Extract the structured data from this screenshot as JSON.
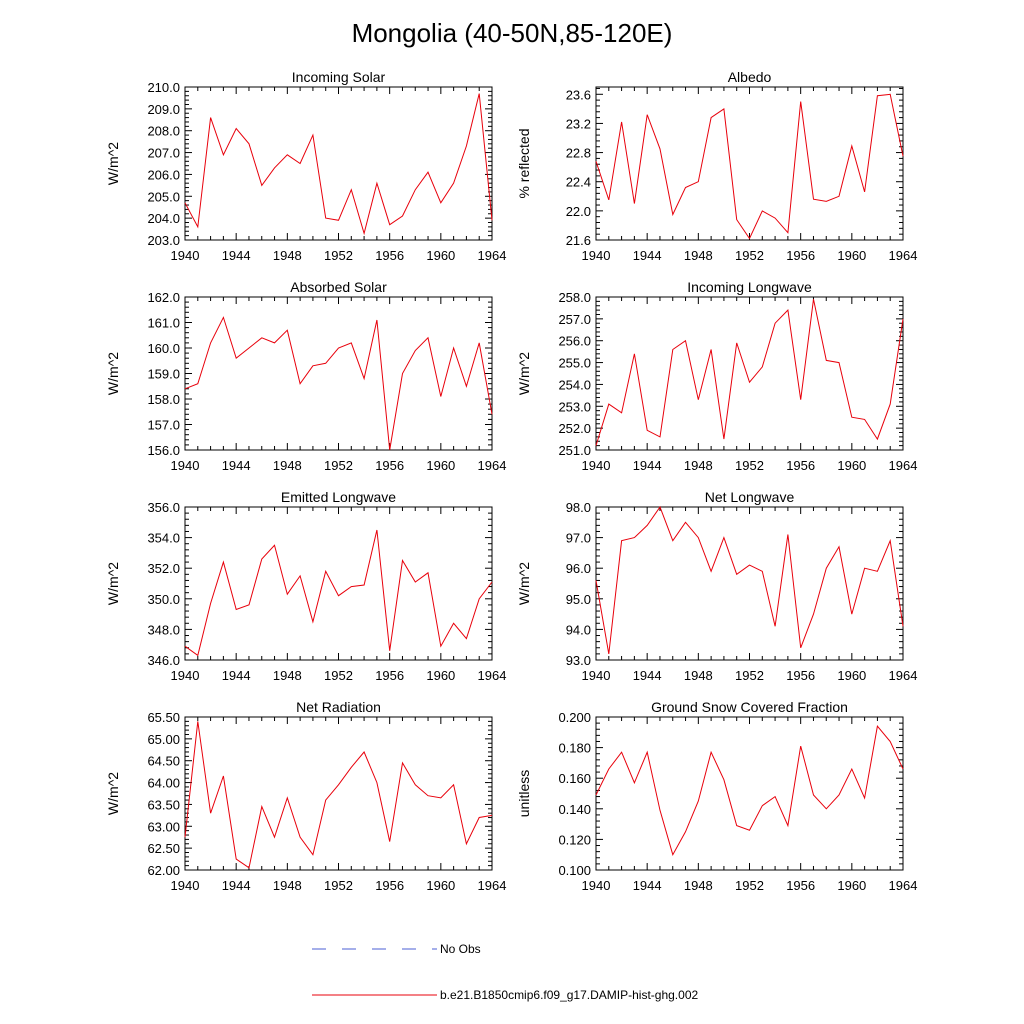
{
  "figure": {
    "title": "Mongolia (40-50N,85-120E)",
    "legend": [
      {
        "label": "No Obs",
        "color": "#4b5fd6",
        "style": "dashed"
      },
      {
        "label": "b.e21.B1850cmip6.f09_g17.DAMIP-hist-ghg.002",
        "color": "#e8000b",
        "style": "solid"
      }
    ]
  },
  "chart_data": [
    {
      "type": "line",
      "title": "Incoming Solar",
      "ylabel": "W/m^2",
      "xlim": [
        1940,
        1964
      ],
      "ylim": [
        203.0,
        210.0
      ],
      "xticks": [
        "1940",
        "1944",
        "1948",
        "1952",
        "1956",
        "1960",
        "1964"
      ],
      "yticks": [
        "203.0",
        "204.0",
        "205.0",
        "206.0",
        "207.0",
        "208.0",
        "209.0",
        "210.0"
      ],
      "x": [
        1940,
        1941,
        1942,
        1943,
        1944,
        1945,
        1946,
        1947,
        1948,
        1949,
        1950,
        1951,
        1952,
        1953,
        1954,
        1955,
        1956,
        1957,
        1958,
        1959,
        1960,
        1961,
        1962,
        1963,
        1964
      ],
      "values": [
        204.7,
        203.6,
        208.6,
        206.9,
        208.1,
        207.4,
        205.5,
        206.3,
        206.9,
        206.5,
        207.8,
        204.0,
        203.9,
        205.3,
        203.3,
        205.6,
        203.7,
        204.1,
        205.3,
        206.1,
        204.7,
        205.6,
        207.3,
        209.7,
        203.9
      ],
      "color": "#e8000b"
    },
    {
      "type": "line",
      "title": "Albedo",
      "ylabel": "% reflected",
      "xlim": [
        1940,
        1964
      ],
      "ylim": [
        21.6,
        23.7
      ],
      "xticks": [
        "1940",
        "1944",
        "1948",
        "1952",
        "1956",
        "1960",
        "1964"
      ],
      "yticks": [
        "21.6",
        "22.0",
        "22.4",
        "22.8",
        "23.2",
        "23.6"
      ],
      "x": [
        1940,
        1941,
        1942,
        1943,
        1944,
        1945,
        1946,
        1947,
        1948,
        1949,
        1950,
        1951,
        1952,
        1953,
        1954,
        1955,
        1956,
        1957,
        1958,
        1959,
        1960,
        1961,
        1962,
        1963,
        1964
      ],
      "values": [
        22.68,
        22.15,
        23.22,
        22.1,
        23.32,
        22.85,
        21.95,
        22.32,
        22.4,
        23.28,
        23.4,
        21.88,
        21.62,
        22.0,
        21.9,
        21.7,
        23.5,
        22.16,
        22.13,
        22.2,
        22.89,
        22.26,
        23.58,
        23.6,
        22.75
      ],
      "color": "#e8000b"
    },
    {
      "type": "line",
      "title": "Absorbed Solar",
      "ylabel": "W/m^2",
      "xlim": [
        1940,
        1964
      ],
      "ylim": [
        156.0,
        162.0
      ],
      "xticks": [
        "1940",
        "1944",
        "1948",
        "1952",
        "1956",
        "1960",
        "1964"
      ],
      "yticks": [
        "156.0",
        "157.0",
        "158.0",
        "159.0",
        "160.0",
        "161.0",
        "162.0"
      ],
      "x": [
        1940,
        1941,
        1942,
        1943,
        1944,
        1945,
        1946,
        1947,
        1948,
        1949,
        1950,
        1951,
        1952,
        1953,
        1954,
        1955,
        1956,
        1957,
        1958,
        1959,
        1960,
        1961,
        1962,
        1963,
        1964
      ],
      "values": [
        158.4,
        158.6,
        160.2,
        161.2,
        159.6,
        160.0,
        160.4,
        160.2,
        160.7,
        158.6,
        159.3,
        159.4,
        160.0,
        160.2,
        158.8,
        161.1,
        156.0,
        159.0,
        159.9,
        160.4,
        158.1,
        160.0,
        158.5,
        160.2,
        157.4
      ],
      "color": "#e8000b"
    },
    {
      "type": "line",
      "title": "Incoming Longwave",
      "ylabel": "W/m^2",
      "xlim": [
        1940,
        1964
      ],
      "ylim": [
        251.0,
        258.0
      ],
      "xticks": [
        "1940",
        "1944",
        "1948",
        "1952",
        "1956",
        "1960",
        "1964"
      ],
      "yticks": [
        "251.0",
        "252.0",
        "253.0",
        "254.0",
        "255.0",
        "256.0",
        "257.0",
        "258.0"
      ],
      "x": [
        1940,
        1941,
        1942,
        1943,
        1944,
        1945,
        1946,
        1947,
        1948,
        1949,
        1950,
        1951,
        1952,
        1953,
        1954,
        1955,
        1956,
        1957,
        1958,
        1959,
        1960,
        1961,
        1962,
        1963,
        1964
      ],
      "values": [
        251.2,
        253.1,
        252.7,
        255.4,
        251.9,
        251.6,
        255.6,
        256.0,
        253.3,
        255.6,
        251.5,
        255.9,
        254.1,
        254.8,
        256.8,
        257.4,
        253.3,
        257.9,
        255.1,
        255.0,
        252.5,
        252.4,
        251.5,
        253.1,
        257.0
      ],
      "color": "#e8000b"
    },
    {
      "type": "line",
      "title": "Emitted Longwave",
      "ylabel": "W/m^2",
      "xlim": [
        1940,
        1964
      ],
      "ylim": [
        346.0,
        356.0
      ],
      "xticks": [
        "1940",
        "1944",
        "1948",
        "1952",
        "1956",
        "1960",
        "1964"
      ],
      "yticks": [
        "346.0",
        "348.0",
        "350.0",
        "352.0",
        "354.0",
        "356.0"
      ],
      "x": [
        1940,
        1941,
        1942,
        1943,
        1944,
        1945,
        1946,
        1947,
        1948,
        1949,
        1950,
        1951,
        1952,
        1953,
        1954,
        1955,
        1956,
        1957,
        1958,
        1959,
        1960,
        1961,
        1962,
        1963,
        1964
      ],
      "values": [
        346.9,
        346.3,
        349.7,
        352.4,
        349.3,
        349.6,
        352.6,
        353.5,
        350.3,
        351.5,
        348.5,
        351.8,
        350.2,
        350.8,
        350.9,
        354.5,
        346.6,
        352.5,
        351.1,
        351.7,
        346.9,
        348.4,
        347.4,
        350.0,
        351.1
      ],
      "color": "#e8000b"
    },
    {
      "type": "line",
      "title": "Net Longwave",
      "ylabel": "W/m^2",
      "xlim": [
        1940,
        1964
      ],
      "ylim": [
        93.0,
        98.0
      ],
      "xticks": [
        "1940",
        "1944",
        "1948",
        "1952",
        "1956",
        "1960",
        "1964"
      ],
      "yticks": [
        "93.0",
        "94.0",
        "95.0",
        "96.0",
        "97.0",
        "98.0"
      ],
      "x": [
        1940,
        1941,
        1942,
        1943,
        1944,
        1945,
        1946,
        1947,
        1948,
        1949,
        1950,
        1951,
        1952,
        1953,
        1954,
        1955,
        1956,
        1957,
        1958,
        1959,
        1960,
        1961,
        1962,
        1963,
        1964
      ],
      "values": [
        95.6,
        93.2,
        96.9,
        97.0,
        97.4,
        98.0,
        96.9,
        97.5,
        97.0,
        95.9,
        97.0,
        95.8,
        96.1,
        95.9,
        94.1,
        97.1,
        93.4,
        94.5,
        96.0,
        96.7,
        94.5,
        96.0,
        95.9,
        96.9,
        94.1
      ],
      "color": "#e8000b"
    },
    {
      "type": "line",
      "title": "Net Radiation",
      "ylabel": "W/m^2",
      "xlim": [
        1940,
        1964
      ],
      "ylim": [
        62.0,
        65.5
      ],
      "xticks": [
        "1940",
        "1944",
        "1948",
        "1952",
        "1956",
        "1960",
        "1964"
      ],
      "yticks": [
        "62.00",
        "62.50",
        "63.00",
        "63.50",
        "64.00",
        "64.50",
        "65.00",
        "65.50"
      ],
      "x": [
        1940,
        1941,
        1942,
        1943,
        1944,
        1945,
        1946,
        1947,
        1948,
        1949,
        1950,
        1951,
        1952,
        1953,
        1954,
        1955,
        1956,
        1957,
        1958,
        1959,
        1960,
        1961,
        1962,
        1963,
        1964
      ],
      "values": [
        62.75,
        65.4,
        63.3,
        64.15,
        62.25,
        62.05,
        63.45,
        62.75,
        63.65,
        62.75,
        62.35,
        63.6,
        63.95,
        64.35,
        64.7,
        64.0,
        62.65,
        64.45,
        63.95,
        63.7,
        63.65,
        63.95,
        62.6,
        63.2,
        63.25
      ],
      "color": "#e8000b"
    },
    {
      "type": "line",
      "title": "Ground Snow Covered Fraction",
      "ylabel": "unitless",
      "xlim": [
        1940,
        1964
      ],
      "ylim": [
        0.1,
        0.2
      ],
      "xticks": [
        "1940",
        "1944",
        "1948",
        "1952",
        "1956",
        "1960",
        "1964"
      ],
      "yticks": [
        "0.100",
        "0.120",
        "0.140",
        "0.160",
        "0.180",
        "0.200"
      ],
      "x": [
        1940,
        1941,
        1942,
        1943,
        1944,
        1945,
        1946,
        1947,
        1948,
        1949,
        1950,
        1951,
        1952,
        1953,
        1954,
        1955,
        1956,
        1957,
        1958,
        1959,
        1960,
        1961,
        1962,
        1963,
        1964
      ],
      "values": [
        0.149,
        0.166,
        0.177,
        0.157,
        0.177,
        0.139,
        0.11,
        0.125,
        0.145,
        0.177,
        0.159,
        0.129,
        0.126,
        0.142,
        0.148,
        0.129,
        0.181,
        0.149,
        0.14,
        0.149,
        0.166,
        0.147,
        0.194,
        0.184,
        0.166
      ],
      "color": "#e8000b"
    }
  ]
}
